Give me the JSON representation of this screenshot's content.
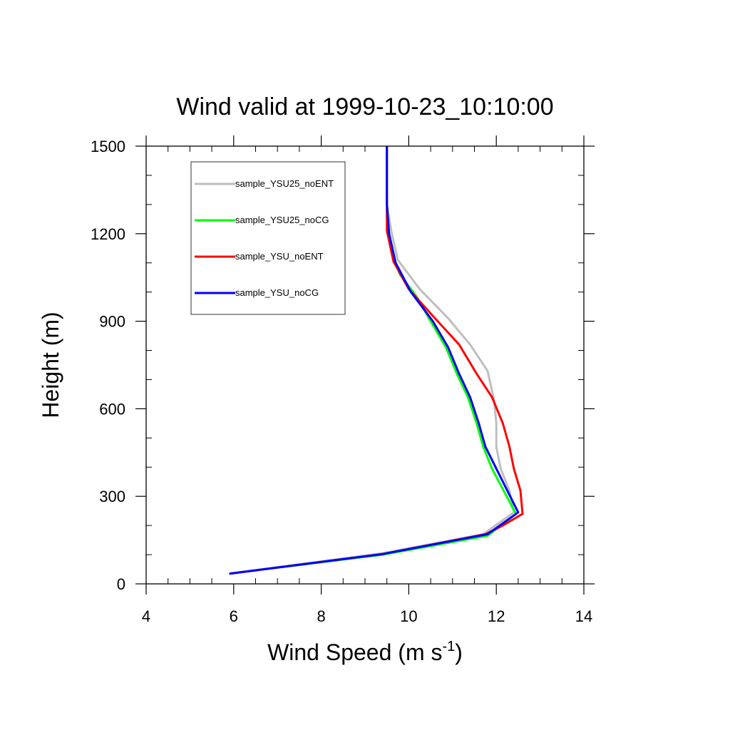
{
  "chart_data": {
    "type": "line",
    "title": "Wind valid at 1999-10-23_10:10:00",
    "xlabel": "Wind Speed (m s",
    "xlabel_sup": "-1",
    "xlabel_end": ")",
    "ylabel": "Height (m)",
    "xlim": [
      4,
      14
    ],
    "ylim": [
      0,
      1500
    ],
    "xticks": [
      4,
      6,
      8,
      10,
      12,
      14
    ],
    "yticks": [
      0,
      300,
      600,
      900,
      1200,
      1500
    ],
    "x_minor_step": 0.5,
    "y_minor_step": 100,
    "grid": false,
    "legend_position": "top-left",
    "series": [
      {
        "name": "sample_YSU25_noENT",
        "color": "#bebebe",
        "points": [
          [
            5.9,
            35
          ],
          [
            9.4,
            105
          ],
          [
            11.7,
            170
          ],
          [
            12.4,
            245
          ],
          [
            12.3,
            320
          ],
          [
            12.1,
            395
          ],
          [
            12.0,
            470
          ],
          [
            12.0,
            550
          ],
          [
            11.95,
            630
          ],
          [
            11.8,
            730
          ],
          [
            11.4,
            820
          ],
          [
            10.9,
            910
          ],
          [
            10.25,
            1010
          ],
          [
            9.75,
            1110
          ],
          [
            9.6,
            1210
          ],
          [
            9.5,
            1300
          ],
          [
            9.5,
            1500
          ]
        ]
      },
      {
        "name": "sample_YSU25_noCG",
        "color": "#00ff00",
        "points": [
          [
            5.9,
            35
          ],
          [
            9.4,
            100
          ],
          [
            11.8,
            165
          ],
          [
            12.45,
            240
          ],
          [
            12.2,
            310
          ],
          [
            11.9,
            395
          ],
          [
            11.7,
            470
          ],
          [
            11.55,
            550
          ],
          [
            11.35,
            640
          ],
          [
            11.1,
            720
          ],
          [
            10.85,
            810
          ],
          [
            10.5,
            900
          ],
          [
            10.2,
            980
          ],
          [
            9.8,
            1060
          ],
          [
            9.65,
            1120
          ],
          [
            9.55,
            1200
          ],
          [
            9.5,
            1300
          ],
          [
            9.5,
            1500
          ]
        ]
      },
      {
        "name": "sample_YSU_noENT",
        "color": "#ff0000",
        "points": [
          [
            5.9,
            35
          ],
          [
            9.4,
            102
          ],
          [
            11.75,
            170
          ],
          [
            12.15,
            200
          ],
          [
            12.6,
            240
          ],
          [
            12.55,
            320
          ],
          [
            12.4,
            395
          ],
          [
            12.3,
            470
          ],
          [
            12.15,
            550
          ],
          [
            11.9,
            640
          ],
          [
            11.55,
            720
          ],
          [
            11.15,
            820
          ],
          [
            10.6,
            910
          ],
          [
            10.0,
            1010
          ],
          [
            9.65,
            1105
          ],
          [
            9.5,
            1210
          ],
          [
            9.5,
            1300
          ],
          [
            9.5,
            1500
          ]
        ]
      },
      {
        "name": "sample_YSU_noCG",
        "color": "#0000ff",
        "points": [
          [
            5.9,
            35
          ],
          [
            9.4,
            102
          ],
          [
            11.8,
            170
          ],
          [
            12.5,
            245
          ],
          [
            12.25,
            320
          ],
          [
            12.0,
            395
          ],
          [
            11.75,
            470
          ],
          [
            11.6,
            550
          ],
          [
            11.4,
            640
          ],
          [
            11.15,
            720
          ],
          [
            10.9,
            810
          ],
          [
            10.55,
            900
          ],
          [
            10.05,
            1000
          ],
          [
            9.7,
            1100
          ],
          [
            9.55,
            1200
          ],
          [
            9.5,
            1300
          ],
          [
            9.5,
            1500
          ]
        ]
      }
    ]
  }
}
